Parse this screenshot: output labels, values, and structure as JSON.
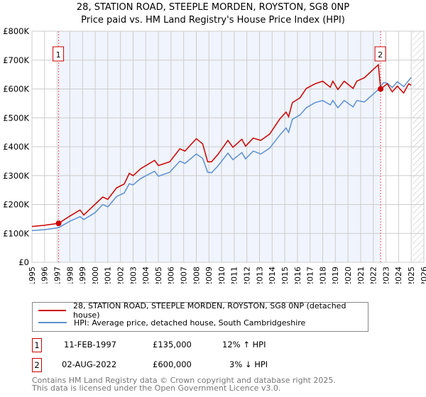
{
  "chart_data": {
    "type": "line",
    "title": "28, STATION ROAD, STEEPLE MORDEN, ROYSTON, SG8 0NP",
    "subtitle": "Price paid vs. HM Land Registry's House Price Index (HPI)",
    "xlim": [
      1995,
      2026
    ],
    "ylim": [
      0,
      800000
    ],
    "x_ticks": [
      "1995",
      "1996",
      "1997",
      "1998",
      "1999",
      "2000",
      "2001",
      "2002",
      "2003",
      "2004",
      "2005",
      "2006",
      "2007",
      "2008",
      "2009",
      "2010",
      "2011",
      "2012",
      "2013",
      "2014",
      "2015",
      "2016",
      "2017",
      "2018",
      "2019",
      "2020",
      "2021",
      "2022",
      "2023",
      "2024",
      "2025",
      "2026"
    ],
    "y_ticks": [
      {
        "v": 0,
        "label": "£0"
      },
      {
        "v": 100000,
        "label": "£100K"
      },
      {
        "v": 200000,
        "label": "£200K"
      },
      {
        "v": 300000,
        "label": "£300K"
      },
      {
        "v": 400000,
        "label": "£400K"
      },
      {
        "v": 500000,
        "label": "£500K"
      },
      {
        "v": 600000,
        "label": "£600K"
      },
      {
        "v": 700000,
        "label": "£700K"
      },
      {
        "v": 800000,
        "label": "£800K"
      }
    ],
    "grid": true,
    "shaded_range": [
      1997.11,
      2022.58
    ],
    "forecast_hatch_from": 2025.1,
    "series": [
      {
        "name": "28, STATION ROAD, STEEPLE MORDEN, ROYSTON, SG8 0NP (detached house)",
        "color": "#cc0000",
        "points": [
          [
            1995,
            124000
          ],
          [
            1996,
            128000
          ],
          [
            1997.11,
            135000
          ],
          [
            1998,
            160000
          ],
          [
            1998.8,
            181000
          ],
          [
            1999.1,
            164000
          ],
          [
            2000,
            201000
          ],
          [
            2000.6,
            226000
          ],
          [
            2001,
            218000
          ],
          [
            2001.7,
            258000
          ],
          [
            2002.3,
            271000
          ],
          [
            2002.7,
            308000
          ],
          [
            2003,
            300000
          ],
          [
            2003.6,
            324000
          ],
          [
            2004.7,
            353000
          ],
          [
            2005,
            335000
          ],
          [
            2005.9,
            348000
          ],
          [
            2006.7,
            393000
          ],
          [
            2007.1,
            385000
          ],
          [
            2008,
            428000
          ],
          [
            2008.5,
            410000
          ],
          [
            2008.9,
            348000
          ],
          [
            2009.2,
            348000
          ],
          [
            2009.7,
            373000
          ],
          [
            2010.5,
            422000
          ],
          [
            2010.9,
            398000
          ],
          [
            2011.6,
            426000
          ],
          [
            2011.9,
            402000
          ],
          [
            2012.5,
            430000
          ],
          [
            2013.1,
            422000
          ],
          [
            2013.8,
            444000
          ],
          [
            2014.6,
            496000
          ],
          [
            2015.1,
            520000
          ],
          [
            2015.3,
            504000
          ],
          [
            2015.6,
            553000
          ],
          [
            2016.2,
            569000
          ],
          [
            2016.7,
            602000
          ],
          [
            2017.4,
            618000
          ],
          [
            2018,
            627000
          ],
          [
            2018.6,
            606000
          ],
          [
            2018.8,
            627000
          ],
          [
            2019.2,
            598000
          ],
          [
            2019.7,
            627000
          ],
          [
            2020.4,
            602000
          ],
          [
            2020.7,
            627000
          ],
          [
            2021.3,
            639000
          ],
          [
            2022.4,
            684000
          ],
          [
            2022.58,
            600000
          ],
          [
            2023.1,
            618000
          ],
          [
            2023.5,
            590000
          ],
          [
            2023.9,
            610000
          ],
          [
            2024.4,
            586000
          ],
          [
            2024.8,
            618000
          ],
          [
            2025,
            613000
          ]
        ]
      },
      {
        "name": "HPI: Average price, detached house, South Cambridgeshire",
        "color": "#5b8fd0",
        "points": [
          [
            1995,
            110000
          ],
          [
            1996,
            113000
          ],
          [
            1997.11,
            120000
          ],
          [
            1998,
            142000
          ],
          [
            1998.8,
            158000
          ],
          [
            1999.1,
            148000
          ],
          [
            2000,
            172000
          ],
          [
            2000.6,
            200000
          ],
          [
            2001,
            192000
          ],
          [
            2001.7,
            228000
          ],
          [
            2002.3,
            240000
          ],
          [
            2002.7,
            272000
          ],
          [
            2003,
            268000
          ],
          [
            2003.6,
            290000
          ],
          [
            2004.7,
            315000
          ],
          [
            2005,
            298000
          ],
          [
            2005.9,
            312000
          ],
          [
            2006.7,
            350000
          ],
          [
            2007.1,
            342000
          ],
          [
            2008,
            375000
          ],
          [
            2008.5,
            360000
          ],
          [
            2008.9,
            312000
          ],
          [
            2009.2,
            310000
          ],
          [
            2009.7,
            333000
          ],
          [
            2010.5,
            378000
          ],
          [
            2010.9,
            355000
          ],
          [
            2011.6,
            380000
          ],
          [
            2011.9,
            358000
          ],
          [
            2012.5,
            385000
          ],
          [
            2013.1,
            375000
          ],
          [
            2013.8,
            395000
          ],
          [
            2014.6,
            440000
          ],
          [
            2015.1,
            465000
          ],
          [
            2015.3,
            450000
          ],
          [
            2015.6,
            495000
          ],
          [
            2016.2,
            510000
          ],
          [
            2016.7,
            535000
          ],
          [
            2017.4,
            553000
          ],
          [
            2018,
            560000
          ],
          [
            2018.6,
            545000
          ],
          [
            2018.8,
            560000
          ],
          [
            2019.2,
            535000
          ],
          [
            2019.7,
            560000
          ],
          [
            2020.4,
            538000
          ],
          [
            2020.7,
            560000
          ],
          [
            2021.3,
            555000
          ],
          [
            2022.4,
            598000
          ],
          [
            2022.8,
            622000
          ],
          [
            2023.1,
            620000
          ],
          [
            2023.5,
            605000
          ],
          [
            2023.9,
            625000
          ],
          [
            2024.4,
            608000
          ],
          [
            2025,
            640000
          ]
        ]
      }
    ],
    "sales": [
      {
        "id": "1",
        "x": 1997.11,
        "price": 135000,
        "date": "11-FEB-1997",
        "price_label": "£135,000",
        "hpi_diff": "12% ↑ HPI"
      },
      {
        "id": "2",
        "x": 2022.58,
        "price": 600000,
        "date": "02-AUG-2022",
        "price_label": "£600,000",
        "hpi_diff": "3% ↓ HPI"
      }
    ]
  },
  "footer": {
    "line1": "Contains HM Land Registry data © Crown copyright and database right 2025.",
    "line2": "This data is licensed under the Open Government Licence v3.0."
  }
}
